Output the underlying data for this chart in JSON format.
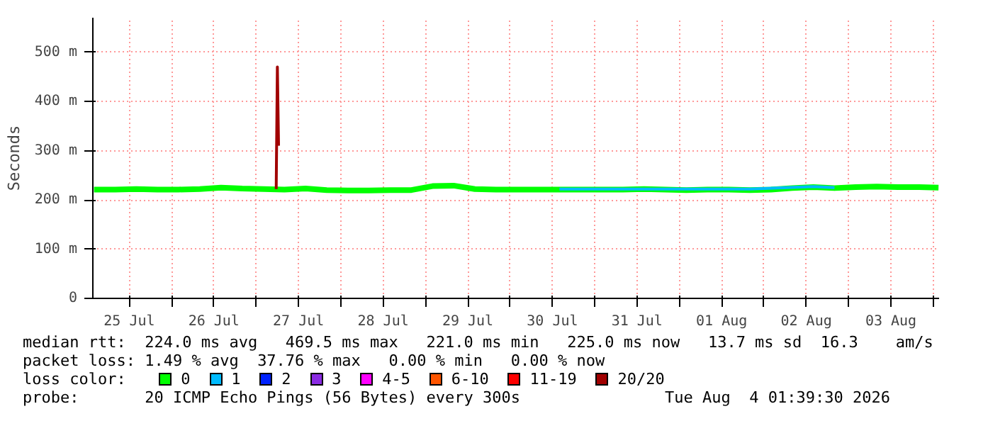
{
  "chart_data": {
    "type": "line",
    "ylabel": "Seconds",
    "legend_title": "loss color:",
    "legend": "bottom",
    "grid": true,
    "marker": "none",
    "line_style": "solid",
    "xlim": [
      "2026-07-25T01:40",
      "2026-08-04T01:40"
    ],
    "xticks": [
      {
        "value": "2026-07-25T12:00",
        "label": "25 Jul"
      },
      {
        "value": "2026-07-26T00:00",
        "label": null
      },
      {
        "value": "2026-07-26T12:00",
        "label": "26 Jul"
      },
      {
        "value": "2026-07-27T00:00",
        "label": null
      },
      {
        "value": "2026-07-27T12:00",
        "label": "27 Jul"
      },
      {
        "value": "2026-07-28T00:00",
        "label": null
      },
      {
        "value": "2026-07-28T12:00",
        "label": "28 Jul"
      },
      {
        "value": "2026-07-29T00:00",
        "label": null
      },
      {
        "value": "2026-07-29T12:00",
        "label": "29 Jul"
      },
      {
        "value": "2026-07-30T00:00",
        "label": null
      },
      {
        "value": "2026-07-30T12:00",
        "label": "30 Jul"
      },
      {
        "value": "2026-07-31T00:00",
        "label": null
      },
      {
        "value": "2026-07-31T12:00",
        "label": "31 Jul"
      },
      {
        "value": "2026-08-01T00:00",
        "label": null
      },
      {
        "value": "2026-08-01T12:00",
        "label": "01 Aug"
      },
      {
        "value": "2026-08-02T00:00",
        "label": null
      },
      {
        "value": "2026-08-02T12:00",
        "label": "02 Aug"
      },
      {
        "value": "2026-08-03T00:00",
        "label": null
      },
      {
        "value": "2026-08-03T12:00",
        "label": "03 Aug"
      },
      {
        "value": "2026-08-04T00:00",
        "label": null
      }
    ],
    "ylim": [
      0,
      570
    ],
    "yticks": [
      0,
      {
        "value": 100,
        "label": "100 m"
      },
      {
        "value": 200,
        "label": "200 m"
      },
      {
        "value": 300,
        "label": "300 m"
      },
      {
        "value": 400,
        "label": "400 m"
      },
      {
        "value": 500,
        "label": "500 m"
      }
    ],
    "series": [
      {
        "name": "0",
        "color": "#00ff00",
        "x": [
          "2026-07-25T02:00",
          "2026-07-25T08:00",
          "2026-07-25T14:00",
          "2026-07-25T20:00",
          "2026-07-26T02:00",
          "2026-07-26T08:00",
          "2026-07-26T14:00",
          "2026-07-26T20:00",
          "2026-07-27T02:00",
          "2026-07-27T08:00",
          "2026-07-27T14:00",
          "2026-07-27T20:00",
          "2026-07-28T02:00",
          "2026-07-28T08:00",
          "2026-07-28T14:00",
          "2026-07-28T20:00",
          "2026-07-29T02:00",
          "2026-07-29T08:00",
          "2026-07-29T14:00",
          "2026-07-29T20:00",
          "2026-07-30T02:00",
          "2026-07-30T08:00",
          "2026-07-30T14:00",
          "2026-07-30T20:00",
          "2026-07-31T02:00",
          "2026-07-31T08:00",
          "2026-07-31T14:00",
          "2026-07-31T20:00",
          "2026-08-01T02:00",
          "2026-08-01T08:00",
          "2026-08-01T14:00",
          "2026-08-01T20:00",
          "2026-08-02T02:00",
          "2026-08-02T08:00",
          "2026-08-02T14:00",
          "2026-08-02T20:00",
          "2026-08-03T02:00",
          "2026-08-03T08:00",
          "2026-08-03T14:00",
          "2026-08-03T20:00",
          "2026-08-04T01:30"
        ],
        "values": [
          221,
          221,
          222,
          221,
          221,
          222,
          225,
          223,
          222,
          221,
          223,
          220,
          219,
          219,
          220,
          220,
          228,
          229,
          222,
          221,
          221,
          221,
          221,
          221,
          221,
          221,
          222,
          221,
          220,
          221,
          221,
          220,
          221,
          224,
          226,
          224,
          226,
          227,
          226,
          226,
          225
        ]
      },
      {
        "name": "1",
        "color": "#00bbff",
        "x": [
          "2026-07-30T14:00",
          "2026-07-30T20:00",
          "2026-08-01T14:00",
          "2026-08-01T20:00",
          "2026-08-02T14:00",
          "2026-08-02T20:00"
        ],
        "values": [
          222,
          222,
          222,
          222,
          227,
          225
        ]
      },
      {
        "name": "2",
        "color": "#0022ff"
      },
      {
        "name": "3",
        "color": "#8a2be2"
      },
      {
        "name": "4-5",
        "color": "#ff00ff"
      },
      {
        "name": "6-10",
        "color": "#ff5500"
      },
      {
        "name": "11-19",
        "color": "#ff0000"
      },
      {
        "name": "20/20",
        "color": "#a10000",
        "x": [
          "2026-07-27T05:40",
          "2026-07-27T06:00",
          "2026-07-27T06:20"
        ],
        "values": [
          222,
          470,
          310
        ]
      }
    ],
    "annotations": [
      "median rtt:  224.0 ms avg   469.5 ms max   221.0 ms min   225.0 ms now   13.7 ms sd  16.3    am/s",
      "packet loss: 1.49 % avg  37.76 % max   0.00 % min   0.00 % now",
      "probe:       20 ICMP Echo Pings (56 Bytes) every 300s",
      "Tue Aug  4 01:39:30 2026"
    ]
  }
}
